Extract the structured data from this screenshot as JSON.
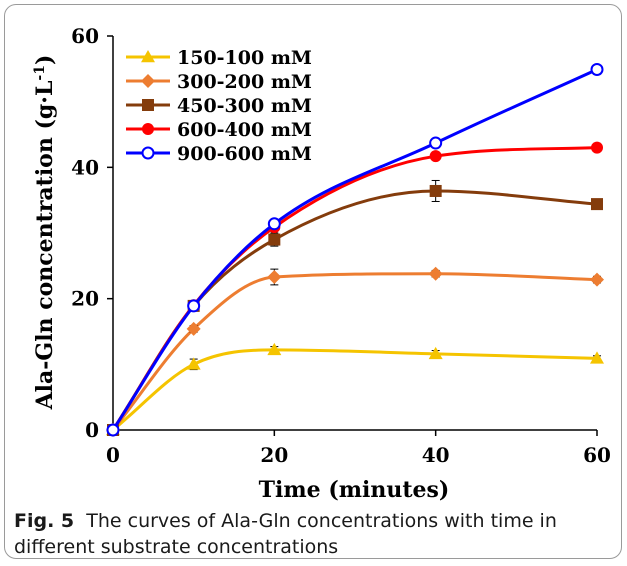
{
  "figure": {
    "label": "Fig. 5",
    "caption": "The curves of Ala-Gln concentrations with time in different substrate concentrations"
  },
  "chart_data": {
    "type": "line",
    "title": "",
    "xlabel": "Time (minutes)",
    "ylabel": "Ala-Gln concentration (g·L",
    "ylabel_superscript": "-1",
    "ylabel_close": ")",
    "xlim": [
      0,
      60
    ],
    "ylim": [
      0,
      60
    ],
    "xticks": [
      "0",
      "20",
      "40",
      "60"
    ],
    "yticks": [
      "0",
      "20",
      "40",
      "60"
    ],
    "x": [
      0,
      10,
      20,
      40,
      60
    ],
    "grid": false,
    "legend_position": "top-left",
    "series": [
      {
        "name": "150-100 mM",
        "color": "#f5c400",
        "marker": "triangle",
        "values": [
          0,
          10,
          12.2,
          11.6,
          10.9
        ],
        "errors": [
          0,
          0.8,
          0.5,
          0.5,
          0.4
        ]
      },
      {
        "name": "300-200 mM",
        "color": "#ed7d31",
        "marker": "diamond",
        "values": [
          0,
          15.4,
          23.3,
          23.8,
          22.9
        ],
        "errors": [
          0,
          0.5,
          1.2,
          0.5,
          0.5
        ]
      },
      {
        "name": "450-300 mM",
        "color": "#843c0c",
        "marker": "square",
        "values": [
          0,
          18.9,
          29,
          36.4,
          34.4
        ],
        "errors": [
          0,
          0.5,
          1.0,
          1.6,
          0.5
        ]
      },
      {
        "name": "600-400 mM",
        "color": "#ff0000",
        "marker": "circle",
        "values": [
          0,
          19,
          30.9,
          41.7,
          43
        ],
        "errors": [
          0,
          0.4,
          0.5,
          0.5,
          0.4
        ]
      },
      {
        "name": "900-600 mM",
        "color": "#0000ff",
        "marker": "open-circle",
        "values": [
          0,
          18.9,
          31.4,
          43.7,
          54.9
        ],
        "errors": [
          0,
          0.3,
          0.4,
          0.4,
          0.4
        ]
      }
    ]
  }
}
